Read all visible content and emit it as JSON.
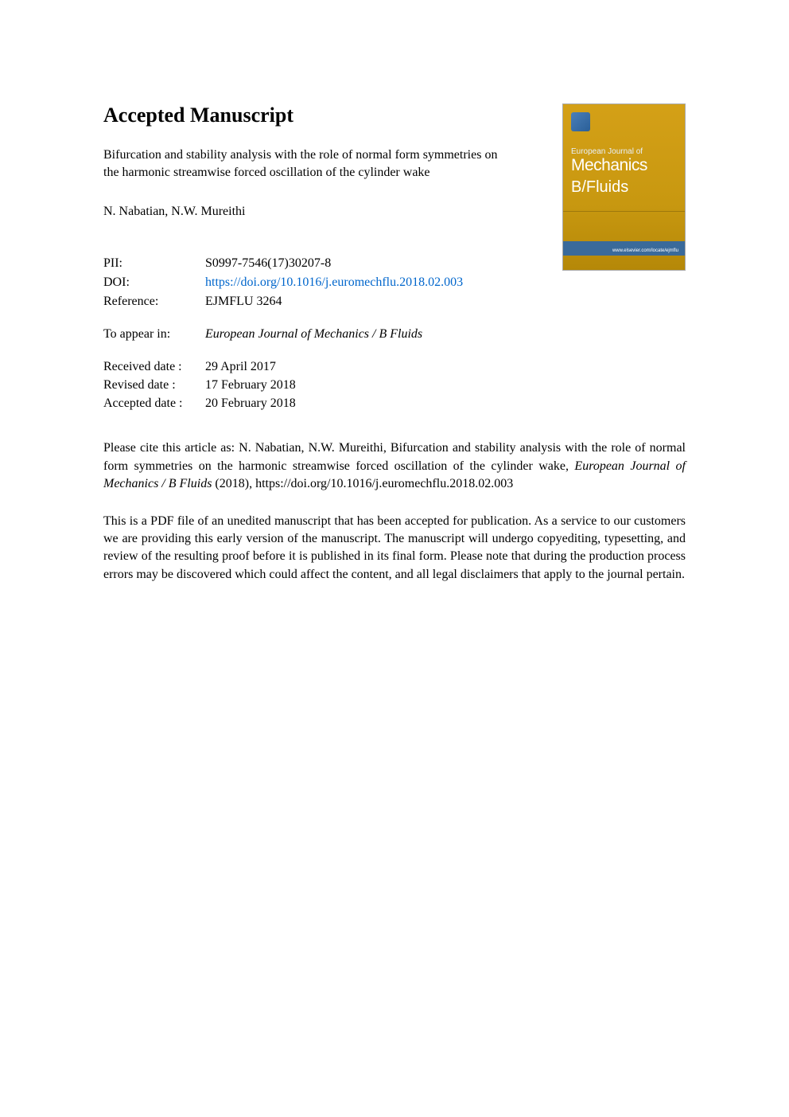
{
  "page_title": "Accepted Manuscript",
  "article_title": "Bifurcation and stability analysis with the role of normal form symmetries on the harmonic streamwise forced oscillation of the cylinder wake",
  "authors": "N. Nabatian, N.W. Mureithi",
  "cover": {
    "topline": "European Journal of",
    "mechanics": "Mechanics",
    "bfluids": "B/Fluids",
    "bottom_text": "www.elsevier.com/locate/ejmflu",
    "bg_gradient_top": "#d4a017",
    "bg_gradient_bottom": "#b58808",
    "band_color": "#3a6a9a"
  },
  "meta": {
    "pii_label": "PII:",
    "pii_value": "S0997-7546(17)30207-8",
    "doi_label": "DOI:",
    "doi_value": "https://doi.org/10.1016/j.euromechflu.2018.02.003",
    "ref_label": "Reference:",
    "ref_value": "EJMFLU 3264"
  },
  "appear": {
    "label": "To appear in:",
    "value": "European Journal of Mechanics / B Fluids"
  },
  "dates": {
    "received_label": "Received date :",
    "received_value": "29 April 2017",
    "revised_label": "Revised date :",
    "revised_value": "17 February 2018",
    "accepted_label": "Accepted date :",
    "accepted_value": "20 February 2018"
  },
  "citation": {
    "prefix": "Please cite this article as: N. Nabatian, N.W. Mureithi, Bifurcation and stability analysis with the role of normal form symmetries on the harmonic streamwise forced oscillation of the cylinder wake, ",
    "journal": "European Journal of Mechanics / B Fluids",
    "year": " (2018), ",
    "url": "https://doi.org/10.1016/j.euromechflu.2018.02.003"
  },
  "disclaimer": "This is a PDF file of an unedited manuscript that has been accepted for publication. As a service to our customers we are providing this early version of the manuscript. The manuscript will undergo copyediting, typesetting, and review of the resulting proof before it is published in its final form. Please note that during the production process errors may be discovered which could affect the content, and all legal disclaimers that apply to the journal pertain.",
  "colors": {
    "text": "#000000",
    "link": "#0066cc",
    "background": "#ffffff"
  },
  "typography": {
    "title_fontsize": 26,
    "body_fontsize": 16,
    "font_family": "Times New Roman"
  }
}
